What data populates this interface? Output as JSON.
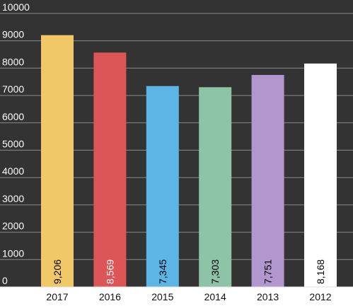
{
  "colors": {
    "plot_background": "#333333",
    "axis_band_background": "#ffffff",
    "gridline": "#8a8a8a",
    "baseline": "#dddddd"
  },
  "chart_data": {
    "type": "bar",
    "title": "",
    "xlabel": "",
    "ylabel": "",
    "ylim": [
      0,
      10000
    ],
    "y_ticks": [
      0,
      1000,
      2000,
      3000,
      4000,
      5000,
      6000,
      7000,
      8000,
      9000,
      10000
    ],
    "y_tick_labels": [
      "0",
      "1000",
      "2000",
      "3000",
      "4000",
      "5000",
      "6000",
      "7000",
      "8000",
      "9000",
      "10000"
    ],
    "grid": true,
    "legend": "none",
    "categories": [
      "2017",
      "2016",
      "2015",
      "2014",
      "2013",
      "2012"
    ],
    "values": [
      9206,
      8569,
      7345,
      7303,
      7751,
      8168
    ],
    "value_labels": [
      "9,206",
      "8,569",
      "7,345",
      "7,303",
      "7,751",
      "8,168"
    ],
    "bar_colors": [
      "#f0c868",
      "#de5557",
      "#5db5e6",
      "#8dc3a7",
      "#b197cd",
      "#ffffff"
    ],
    "value_label_colors": [
      "#000000",
      "#ffffff",
      "#000000",
      "#000000",
      "#000000",
      "#000000"
    ],
    "value_label_orientation": "vertical"
  }
}
